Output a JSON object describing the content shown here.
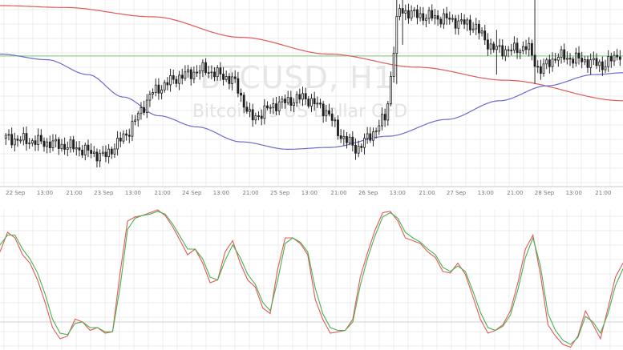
{
  "watermark": {
    "title": "BTCUSD, H1",
    "subtitle": "Bitcoin vs US Dollar CFD"
  },
  "chart_data": [
    {
      "type": "candlestick",
      "title": "BTCUSD, H1",
      "subtitle": "Bitcoin vs US Dollar CFD",
      "x_tick_labels": [
        "22 Sep",
        "13:00",
        "21:00",
        "23 Sep",
        "13:00",
        "21:00",
        "24 Sep",
        "13:00",
        "21:00",
        "25 Sep",
        "13:00",
        "21:00",
        "26 Sep",
        "13:00",
        "21:00",
        "27 Sep",
        "13:00",
        "21:00",
        "28 Sep",
        "13:00",
        "21:00"
      ],
      "x_tick_positions": [
        0,
        10,
        20,
        30,
        40,
        50,
        60,
        70,
        80,
        90,
        100,
        110,
        120,
        130,
        140,
        150,
        160,
        170,
        180,
        190,
        200
      ],
      "x_range": [
        -2,
        210
      ],
      "y_range": [
        0,
        100
      ],
      "grid": true,
      "horizontal_level": 70,
      "moving_averages": [
        {
          "color": "#e05a5a",
          "points": [
            [
              -2,
              97
            ],
            [
              20,
              96
            ],
            [
              50,
              91
            ],
            [
              80,
              80
            ],
            [
              110,
              71
            ],
            [
              140,
              64
            ],
            [
              170,
              57
            ],
            [
              210,
              46
            ]
          ]
        },
        {
          "color": "#6b6bcf",
          "points": [
            [
              -2,
              71
            ],
            [
              14,
              68
            ],
            [
              28,
              60
            ],
            [
              40,
              48
            ],
            [
              52,
              38
            ],
            [
              65,
              32
            ],
            [
              80,
              24
            ],
            [
              96,
              20
            ],
            [
              110,
              21
            ],
            [
              130,
              27
            ],
            [
              150,
              36
            ],
            [
              168,
              46
            ],
            [
              184,
              54
            ],
            [
              200,
              60
            ],
            [
              210,
              61
            ]
          ]
        }
      ],
      "candles": {
        "count": 210,
        "anchors": [
          [
            0,
            26
          ],
          [
            12,
            24
          ],
          [
            24,
            21
          ],
          [
            34,
            16
          ],
          [
            42,
            29
          ],
          [
            50,
            50
          ],
          [
            58,
            58
          ],
          [
            68,
            63
          ],
          [
            78,
            57
          ],
          [
            84,
            36
          ],
          [
            92,
            44
          ],
          [
            102,
            48
          ],
          [
            110,
            40
          ],
          [
            114,
            28
          ],
          [
            120,
            20
          ],
          [
            126,
            30
          ],
          [
            130,
            38
          ],
          [
            134,
            95
          ],
          [
            140,
            92
          ],
          [
            150,
            90
          ],
          [
            160,
            86
          ],
          [
            166,
            74
          ],
          [
            172,
            73
          ],
          [
            178,
            75
          ],
          [
            182,
            62
          ],
          [
            188,
            70
          ],
          [
            196,
            68
          ],
          [
            204,
            65
          ],
          [
            210,
            72
          ]
        ],
        "spikes": [
          {
            "i": 133,
            "high": 100,
            "low": 55
          },
          {
            "i": 135,
            "high": 135,
            "low": 76
          },
          {
            "i": 167,
            "high": 84,
            "low": 60
          },
          {
            "i": 180,
            "high": 125,
            "low": 55
          }
        ]
      }
    },
    {
      "type": "line",
      "title": "",
      "y_range": [
        0,
        100
      ],
      "grid": true,
      "series": [
        {
          "color": "#e05a5a",
          "values": [
            70,
            84,
            80,
            68,
            62,
            50,
            34,
            16,
            8,
            10,
            22,
            20,
            14,
            16,
            12,
            13,
            55,
            92,
            95,
            96,
            98,
            100,
            96,
            88,
            78,
            68,
            72,
            62,
            48,
            50,
            70,
            78,
            62,
            50,
            45,
            30,
            26,
            58,
            80,
            80,
            76,
            68,
            36,
            22,
            12,
            13,
            14,
            22,
            52,
            70,
            86,
            98,
            99,
            92,
            80,
            78,
            76,
            70,
            66,
            56,
            55,
            62,
            54,
            38,
            22,
            12,
            14,
            18,
            28,
            48,
            72,
            82,
            54,
            18,
            10,
            4,
            2,
            10,
            28,
            18,
            8,
            30,
            52,
            62
          ]
        },
        {
          "color": "#4caf50",
          "values": [
            75,
            82,
            82,
            72,
            65,
            55,
            40,
            22,
            12,
            11,
            19,
            20,
            16,
            16,
            13,
            13,
            45,
            86,
            94,
            96,
            97,
            99,
            97,
            90,
            81,
            72,
            72,
            65,
            52,
            50,
            64,
            75,
            66,
            54,
            47,
            34,
            28,
            50,
            76,
            80,
            77,
            70,
            44,
            26,
            16,
            14,
            14,
            20,
            46,
            66,
            82,
            95,
            98,
            94,
            84,
            80,
            77,
            72,
            68,
            59,
            56,
            60,
            56,
            42,
            27,
            16,
            14,
            17,
            25,
            43,
            66,
            80,
            60,
            26,
            14,
            7,
            4,
            9,
            24,
            20,
            12,
            26,
            46,
            58
          ]
        }
      ]
    }
  ]
}
